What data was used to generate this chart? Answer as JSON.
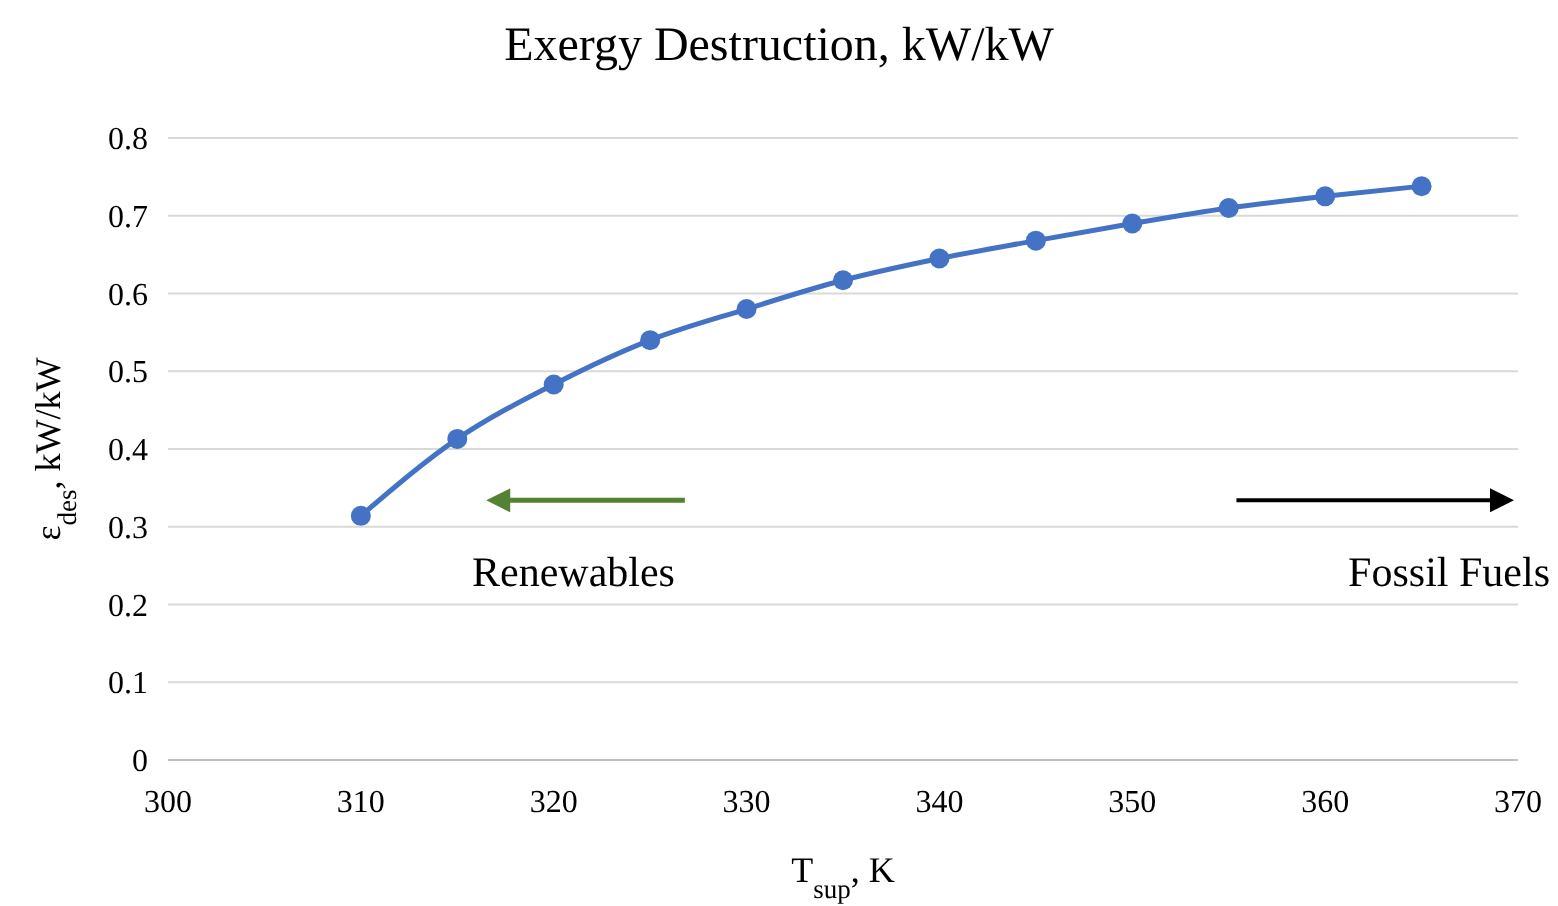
{
  "chart_data": {
    "type": "line",
    "title": "Exergy Destruction, kW/kW",
    "xlabel": "T$_{sup}$, K",
    "ylabel": "ε$_{des}$, kW/kW",
    "x": [
      310,
      315,
      320,
      325,
      330,
      335,
      340,
      345,
      350,
      355,
      360,
      365
    ],
    "series": [
      {
        "color": "#4472c4",
        "values": [
          0.314,
          0.413,
          0.483,
          0.54,
          0.58,
          0.617,
          0.645,
          0.668,
          0.69,
          0.71,
          0.725,
          0.738
        ]
      }
    ],
    "xlim": [
      300,
      370
    ],
    "xticks": [
      300,
      310,
      320,
      330,
      340,
      350,
      360,
      370
    ],
    "ylim": [
      0,
      0.8
    ],
    "yticks": [
      0,
      0.1,
      0.2,
      0.3,
      0.4,
      0.5,
      0.6,
      0.7,
      0.8
    ],
    "grid": "y",
    "marker": "circle",
    "line_style": "solid",
    "annotations": [
      "Renewables",
      "Fossil Fuels"
    ]
  }
}
